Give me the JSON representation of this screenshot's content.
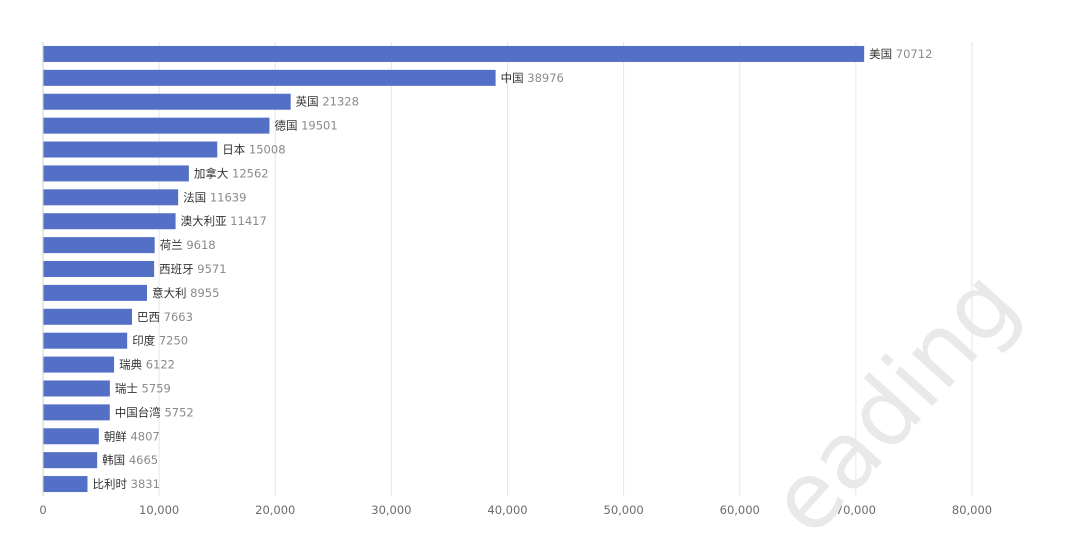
{
  "chart_data": {
    "type": "bar",
    "orientation": "horizontal",
    "categories": [
      "美国",
      "中国",
      "英国",
      "德国",
      "日本",
      "加拿大",
      "法国",
      "澳大利亚",
      "荷兰",
      "西班牙",
      "意大利",
      "巴西",
      "印度",
      "瑞典",
      "瑞士",
      "中国台湾",
      "朝鲜",
      "韩国",
      "比利时"
    ],
    "values": [
      70712,
      38976,
      21328,
      19501,
      15008,
      12562,
      11639,
      11417,
      9618,
      9571,
      8955,
      7663,
      7250,
      6122,
      5759,
      5752,
      4807,
      4665,
      3831
    ],
    "xlim": [
      0,
      80000
    ],
    "x_ticks": [
      "0",
      "10,000",
      "20,000",
      "30,000",
      "40,000",
      "50,000",
      "60,000",
      "70,000",
      "80,000"
    ],
    "x_tick_values": [
      0,
      10000,
      20000,
      30000,
      40000,
      50000,
      60000,
      70000,
      80000
    ],
    "grid": "vertical",
    "bar_color": "#5470c6",
    "data_labels": "category and value at bar end"
  },
  "watermark": {
    "text": "eading"
  }
}
